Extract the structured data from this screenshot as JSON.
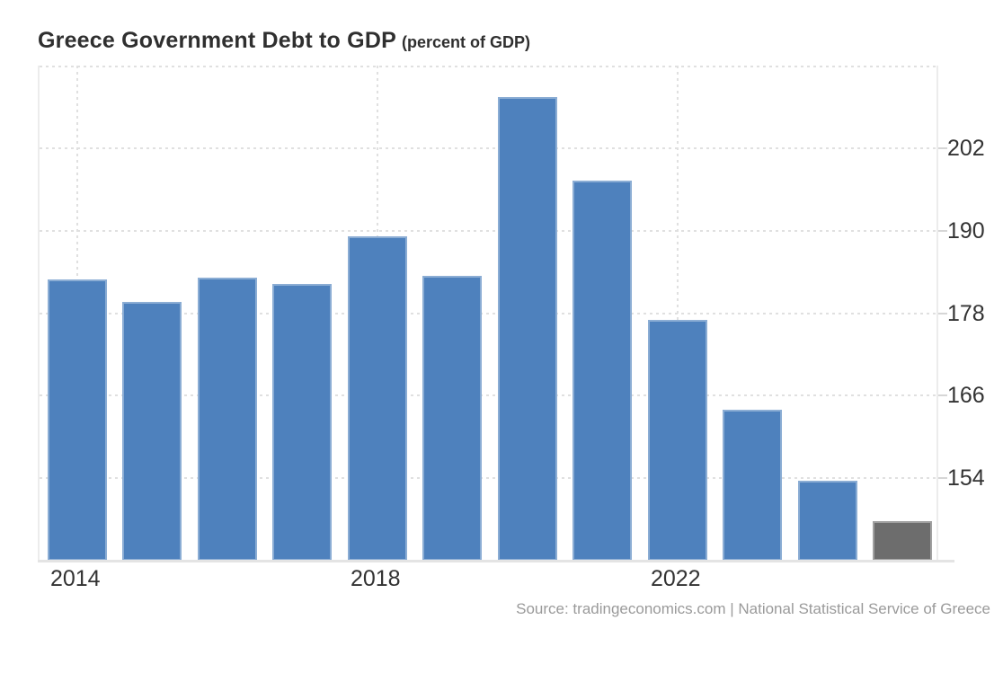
{
  "title": {
    "main": "Greece Government Debt to GDP",
    "unit": "(percent of GDP)"
  },
  "source": "Source: tradingeconomics.com | National Statistical Service of Greece",
  "colors": {
    "bar": "#4e81bd",
    "forecast_bar": "#6d6d6d",
    "grid": "#e0e0e0",
    "axis_label": "#333333",
    "source_text": "#9a9a9a"
  },
  "chart_data": {
    "type": "bar",
    "title": "Greece Government Debt to GDP",
    "subtitle": "(percent of GDP)",
    "ylabel": "percent of GDP",
    "categories": [
      "2014",
      "2015",
      "2016",
      "2017",
      "2018",
      "2019",
      "2020",
      "2021",
      "2022",
      "2023",
      "2024",
      "2025"
    ],
    "values": [
      182.9,
      179.7,
      183.2,
      182.2,
      189.2,
      183.4,
      209.4,
      197.3,
      177.0,
      163.9,
      153.6,
      147.8
    ],
    "forecast_flags": [
      false,
      false,
      false,
      false,
      false,
      false,
      false,
      false,
      false,
      false,
      false,
      true
    ],
    "ylim": [
      142,
      214
    ],
    "yticks": [
      154,
      166,
      178,
      190,
      202
    ],
    "xticks_shown": [
      "2014",
      "2018",
      "2022"
    ],
    "grid": "dotted",
    "legend": "none",
    "y_axis_side": "right"
  }
}
